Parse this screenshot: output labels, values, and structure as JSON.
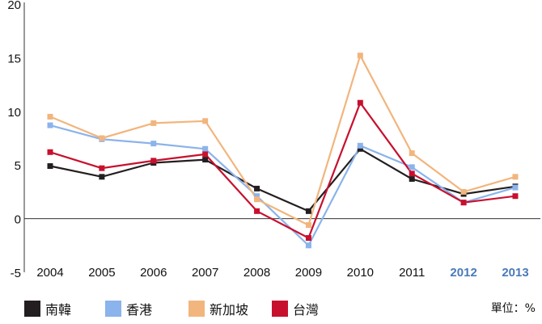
{
  "chart_data": {
    "type": "line",
    "categories": [
      "2004",
      "2005",
      "2006",
      "2007",
      "2008",
      "2009",
      "2010",
      "2011",
      "2012",
      "2013"
    ],
    "highlighted_categories": [
      "2012",
      "2013"
    ],
    "highlight_color": "#4a7ab8",
    "ylim": [
      -5,
      20
    ],
    "yticks": [
      -5,
      0,
      5,
      10,
      15,
      20
    ],
    "series": [
      {
        "name": "南韓",
        "color": "#231f20",
        "values": [
          4.9,
          3.9,
          5.2,
          5.5,
          2.8,
          0.7,
          6.5,
          3.7,
          2.3,
          3.0
        ]
      },
      {
        "name": "香港",
        "color": "#8bb3ec",
        "values": [
          8.7,
          7.4,
          7.0,
          6.5,
          2.1,
          -2.5,
          6.8,
          4.8,
          1.5,
          2.9
        ]
      },
      {
        "name": "新加坡",
        "color": "#f2b57d",
        "values": [
          9.5,
          7.5,
          8.9,
          9.1,
          1.8,
          -0.6,
          15.2,
          6.1,
          2.5,
          3.9
        ]
      },
      {
        "name": "台灣",
        "color": "#c8102e",
        "values": [
          6.2,
          4.7,
          5.4,
          6.0,
          0.7,
          -1.8,
          10.8,
          4.2,
          1.5,
          2.1
        ]
      }
    ],
    "grid": false
  },
  "unit_label": "單位：%"
}
